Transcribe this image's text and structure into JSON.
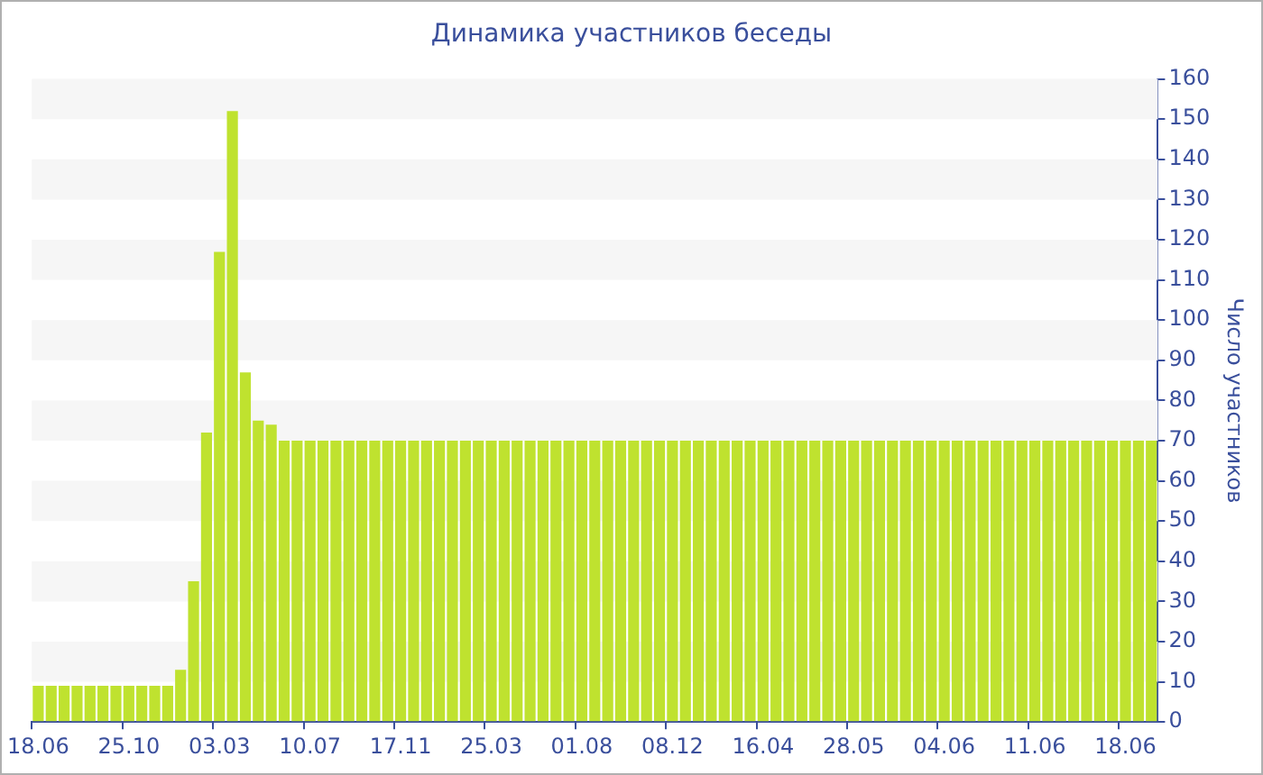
{
  "chart_data": {
    "type": "bar",
    "title": "Динамика участников беседы",
    "ylabel": "Число участников",
    "categories": [
      "18.06",
      null,
      null,
      null,
      null,
      null,
      null,
      "25.10",
      null,
      null,
      null,
      null,
      null,
      null,
      "03.03",
      null,
      null,
      null,
      null,
      null,
      null,
      "10.07",
      null,
      null,
      null,
      null,
      null,
      null,
      "17.11",
      null,
      null,
      null,
      null,
      null,
      null,
      "25.03",
      null,
      null,
      null,
      null,
      null,
      null,
      "01.08",
      null,
      null,
      null,
      null,
      null,
      null,
      "08.12",
      null,
      null,
      null,
      null,
      null,
      null,
      "16.04",
      null,
      null,
      null,
      null,
      null,
      null,
      "28.05",
      null,
      null,
      null,
      null,
      null,
      null,
      "04.06",
      null,
      null,
      null,
      null,
      null,
      null,
      "11.06",
      null,
      null,
      null,
      null,
      null,
      null,
      "18.06",
      null,
      null
    ],
    "values": [
      9,
      9,
      9,
      9,
      9,
      9,
      9,
      9,
      9,
      9,
      9,
      13,
      35,
      72,
      117,
      152,
      87,
      75,
      74,
      70,
      70,
      70,
      70,
      70,
      70,
      70,
      70,
      70,
      70,
      70,
      70,
      70,
      70,
      70,
      70,
      70,
      70,
      70,
      70,
      70,
      70,
      70,
      70,
      70,
      70,
      70,
      70,
      70,
      70,
      70,
      70,
      70,
      70,
      70,
      70,
      70,
      70,
      70,
      70,
      70,
      70,
      70,
      70,
      70,
      70,
      70,
      70,
      70,
      70,
      70,
      70,
      70,
      70,
      70,
      70,
      70,
      70,
      70,
      70,
      70,
      70,
      70,
      70,
      70,
      70,
      70,
      70
    ],
    "color": "#bfe22f",
    "ylim": [
      0,
      160
    ],
    "yticks": [
      0,
      10,
      20,
      30,
      40,
      50,
      60,
      70,
      80,
      90,
      100,
      110,
      120,
      130,
      140,
      150,
      160
    ],
    "legend": false
  }
}
